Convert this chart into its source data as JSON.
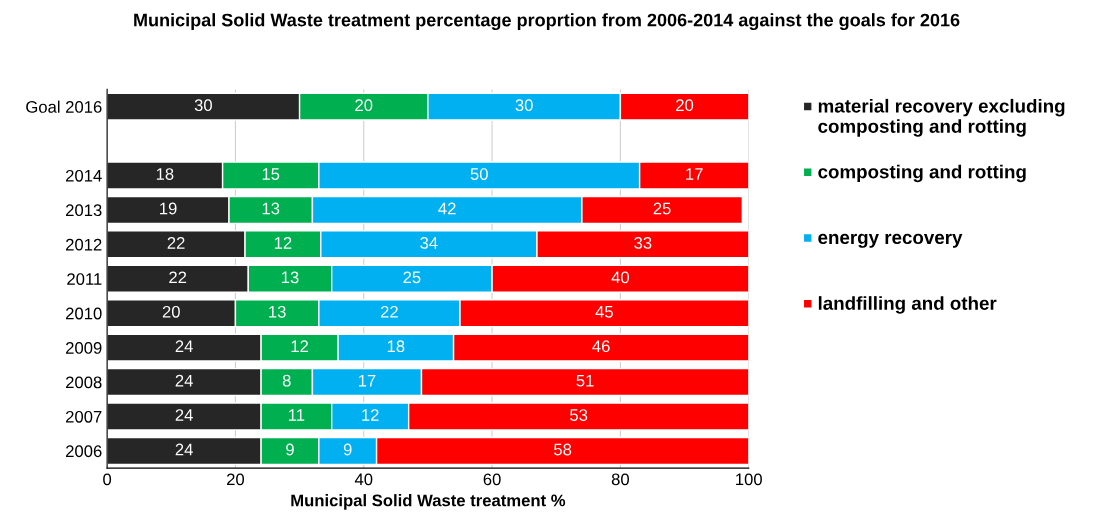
{
  "chart_data": {
    "type": "bar",
    "orientation": "horizontal",
    "stacked": true,
    "title": "Municipal Solid Waste treatment percentage proprtion from 2006-2014 against the goals for 2016",
    "xlabel": "Municipal Solid Waste treatment %",
    "categories": [
      "Goal 2016",
      null,
      "2014",
      "2013",
      "2012",
      "2011",
      "2010",
      "2009",
      "2008",
      "2007",
      "2006"
    ],
    "series": [
      {
        "name": "material recovery excluding composting and rotting",
        "color": "#262626",
        "values": [
          30,
          null,
          18,
          19,
          21.5,
          22,
          20,
          24,
          24,
          24,
          24
        ],
        "value_labels": [
          "30",
          null,
          "18",
          "19",
          "22",
          "22",
          "20",
          "24",
          "24",
          "24",
          "24"
        ]
      },
      {
        "name": "composting and rotting",
        "color": "#00b050",
        "values": [
          20,
          null,
          15,
          13,
          11.8,
          13,
          13,
          12,
          8,
          11,
          9
        ],
        "value_labels": [
          "20",
          null,
          "15",
          "13",
          "12",
          "13",
          "13",
          "12",
          "8",
          "11",
          "9"
        ]
      },
      {
        "name": "energy recovery",
        "color": "#00b0f0",
        "values": [
          30,
          null,
          50,
          42,
          33.7,
          25,
          22,
          18,
          17,
          12,
          9
        ],
        "value_labels": [
          "30",
          null,
          "50",
          "42",
          "34",
          "25",
          "22",
          "18",
          "17",
          "12",
          "9"
        ]
      },
      {
        "name": "landfilling and other",
        "color": "#ff0000",
        "values": [
          20,
          null,
          17,
          25,
          33,
          40,
          45,
          46,
          51,
          53,
          58
        ],
        "value_labels": [
          "20",
          null,
          "17",
          "25",
          "33",
          "40",
          "45",
          "46",
          "51",
          "53",
          "58"
        ]
      }
    ],
    "xlim": [
      0,
      100
    ],
    "xticks": [
      0,
      20,
      40,
      60,
      80,
      100
    ],
    "grid": "x",
    "legend": "right"
  }
}
